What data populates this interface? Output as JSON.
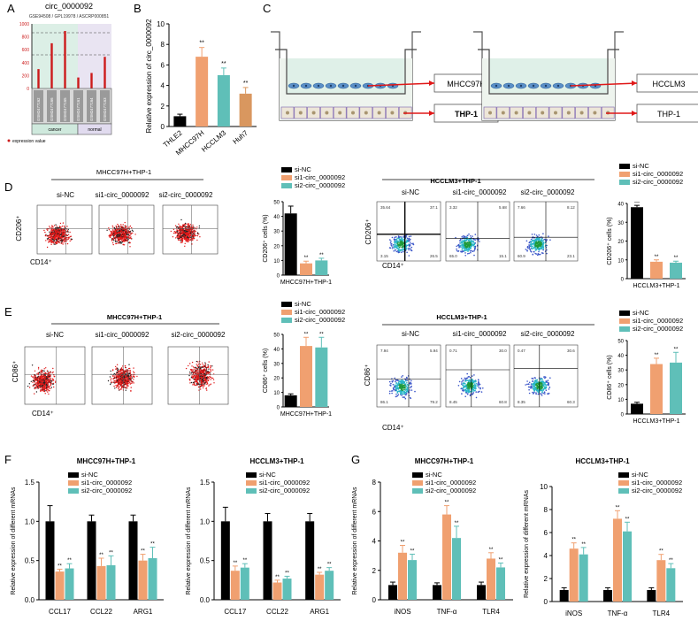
{
  "panel_labels": {
    "a": "A",
    "b": "B",
    "c": "C",
    "d": "D",
    "e": "E",
    "f": "F",
    "g": "G"
  },
  "colors": {
    "black": "#000000",
    "orange": "#f0a070",
    "teal": "#5fbfb8",
    "red": "#cc1b1b",
    "flow_red": "#e01818",
    "green_band": "#dcefe6",
    "purple_band": "#e9e4f2"
  },
  "panel_a": {
    "title": "circ_0000092",
    "subtitle": "GSE94508 / GPL19978 / ASCRP000851",
    "yticks": [
      "1000",
      "800",
      "600",
      "400",
      "200",
      "0"
    ],
    "samples": [
      "GSM2477162",
      "GSM2477166",
      "GSM2477165",
      "GSM2477161",
      "GSM2477164",
      "GSM2477163"
    ],
    "groups": [
      "cancer",
      "normal"
    ],
    "legend": "expression value",
    "chart_data": {
      "type": "bar",
      "categories": [
        "GSM2477162",
        "GSM2477166",
        "GSM2477165",
        "GSM2477161",
        "GSM2477164",
        "GSM2477163"
      ],
      "values": [
        300,
        700,
        890,
        170,
        240,
        490
      ],
      "ylim": [
        0,
        1000
      ],
      "title": "circ_0000092"
    }
  },
  "panel_b": {
    "ylabel": "Relative expression of circ_0000092",
    "yticks": [
      "0",
      "2",
      "4",
      "6",
      "8",
      "10"
    ],
    "categories": [
      "THLE2",
      "MHCC97H",
      "HCCLM3",
      "Huh7"
    ],
    "sig": [
      "",
      "**",
      "**",
      "**"
    ],
    "chart_data": {
      "type": "bar",
      "categories": [
        "THLE2",
        "MHCC97H",
        "HCCLM3",
        "Huh7"
      ],
      "values": [
        1.0,
        6.8,
        5.0,
        3.2
      ],
      "errors": [
        0.2,
        0.9,
        0.7,
        0.6
      ],
      "ylim": [
        0,
        10
      ],
      "ylabel": "Relative expression of circ_0000092"
    }
  },
  "panel_c": {
    "left_upper": "MHCC97H",
    "left_lower": "THP-1",
    "right_upper": "HCCLM3",
    "right_lower": "THP-1"
  },
  "legend3": {
    "nc": "si-NC",
    "si1": "si1-circ_0000092",
    "si2": "si2-circ_0000092"
  },
  "panel_d": {
    "left_title": "MHCC97H+THP-1",
    "right_title": "HCCLM3+THP-1",
    "col_labels": [
      "si-NC",
      "si1-circ_0000092",
      "si2-circ_0000092"
    ],
    "ylabel": "CD206⁺",
    "xlabel": "CD14⁺",
    "right_quads": [
      [
        "35.64",
        "37.1",
        "3.15",
        "26.5"
      ],
      [
        "3.32",
        "5.68",
        "65.0",
        "15.1"
      ],
      [
        "7.66",
        "8.12",
        "60.9",
        "23.1"
      ]
    ],
    "bar1": {
      "ylabel": "CD206⁺ cells (%)",
      "yticks": [
        "0",
        "10",
        "20",
        "30",
        "40",
        "50"
      ],
      "xlabel": "MHCC97H+THP-1",
      "sig": [
        "",
        "**",
        "**"
      ],
      "chart_data": {
        "type": "bar",
        "categories": [
          "si-NC",
          "si1-circ_0000092",
          "si2-circ_0000092"
        ],
        "values": [
          42,
          8,
          10
        ],
        "errors": [
          5,
          1.5,
          1.5
        ],
        "ylim": [
          0,
          50
        ]
      }
    },
    "bar2": {
      "ylabel": "CD206⁺ cells (%)",
      "yticks": [
        "0",
        "10",
        "20",
        "30",
        "40"
      ],
      "xlabel": "HCCLM3+THP-1",
      "sig": [
        "—",
        "**",
        "**"
      ],
      "chart_data": {
        "type": "bar",
        "categories": [
          "si-NC",
          "si1-circ_0000092",
          "si2-circ_0000092"
        ],
        "values": [
          38,
          9,
          8.5
        ],
        "errors": [
          1,
          1,
          0.8
        ],
        "ylim": [
          0,
          40
        ]
      }
    }
  },
  "panel_e": {
    "left_title": "MHCC97H+THP-1",
    "right_title": "HCCLM3+THP-1",
    "col_labels": [
      "si-NC",
      "si1-circ_0000092",
      "si2-circ_0000092"
    ],
    "ylabel": "CD86⁺",
    "xlabel": "CD14⁺",
    "right_quads": [
      [
        "7.94",
        "5.94",
        "86.1",
        "79.2"
      ],
      [
        "0.71",
        "30.0",
        "8.45",
        "60.8"
      ],
      [
        "0.47",
        "30.6",
        "8.35",
        "60.3"
      ]
    ],
    "bar1": {
      "ylabel": "CD86⁺ cells (%)",
      "yticks": [
        "0",
        "10",
        "20",
        "30",
        "40",
        "50"
      ],
      "xlabel": "MHCC97H+THP-1",
      "sig": [
        "",
        "**",
        "**"
      ],
      "chart_data": {
        "type": "bar",
        "categories": [
          "si-NC",
          "si1-circ_0000092",
          "si2-circ_0000092"
        ],
        "values": [
          8,
          42,
          41
        ],
        "errors": [
          1,
          6,
          7
        ],
        "ylim": [
          0,
          50
        ]
      }
    },
    "bar2": {
      "ylabel": "CD86⁺ cells (%)",
      "yticks": [
        "0",
        "10",
        "20",
        "30",
        "40",
        "50"
      ],
      "xlabel": "HCCLM3+THP-1",
      "sig": [
        "",
        "**",
        "**"
      ],
      "chart_data": {
        "type": "bar",
        "categories": [
          "si-NC",
          "si1-circ_0000092",
          "si2-circ_0000092"
        ],
        "values": [
          7,
          34,
          35
        ],
        "errors": [
          1,
          4,
          7
        ],
        "ylim": [
          0,
          50
        ]
      }
    }
  },
  "panel_f": {
    "ylabel": "Relative expression of different mRNAs",
    "charts": [
      {
        "title": "MHCC97H+THP-1",
        "yticks": [
          "0.0",
          "0.5",
          "1.0",
          "1.5"
        ],
        "chart_data": {
          "type": "bar",
          "categories": [
            "CCL17",
            "CCL22",
            "ARG1"
          ],
          "series": [
            {
              "name": "si-NC",
              "values": [
                1.0,
                1.0,
                1.0
              ],
              "errors": [
                0.2,
                0.08,
                0.08
              ]
            },
            {
              "name": "si1-circ_0000092",
              "values": [
                0.36,
                0.43,
                0.5
              ],
              "errors": [
                0.03,
                0.1,
                0.08
              ]
            },
            {
              "name": "si2-circ_0000092",
              "values": [
                0.4,
                0.44,
                0.53
              ],
              "errors": [
                0.06,
                0.12,
                0.14
              ]
            }
          ],
          "ylim": [
            0,
            1.5
          ]
        }
      },
      {
        "title": "HCCLM3+THP-1",
        "yticks": [
          "0.0",
          "0.5",
          "1.0",
          "1.5"
        ],
        "chart_data": {
          "type": "bar",
          "categories": [
            "CCL17",
            "CCL22",
            "ARG1"
          ],
          "series": [
            {
              "name": "si-NC",
              "values": [
                1.0,
                1.0,
                1.0
              ],
              "errors": [
                0.18,
                0.1,
                0.1
              ]
            },
            {
              "name": "si1-circ_0000092",
              "values": [
                0.37,
                0.22,
                0.32
              ],
              "errors": [
                0.06,
                0.03,
                0.03
              ]
            },
            {
              "name": "si2-circ_0000092",
              "values": [
                0.41,
                0.27,
                0.37
              ],
              "errors": [
                0.05,
                0.03,
                0.04
              ]
            }
          ],
          "ylim": [
            0,
            1.5
          ]
        }
      }
    ]
  },
  "panel_g": {
    "ylabel": "Relative expression of different mRNAs",
    "charts": [
      {
        "title": "MHCC97H+THP-1",
        "yticks": [
          "0",
          "2",
          "4",
          "6",
          "8"
        ],
        "chart_data": {
          "type": "bar",
          "categories": [
            "iNOS",
            "TNF-α",
            "TLR4"
          ],
          "series": [
            {
              "name": "si-NC",
              "values": [
                1.0,
                1.0,
                1.0
              ],
              "errors": [
                0.2,
                0.15,
                0.2
              ]
            },
            {
              "name": "si1-circ_0000092",
              "values": [
                3.2,
                5.8,
                2.8
              ],
              "errors": [
                0.5,
                0.6,
                0.4
              ]
            },
            {
              "name": "si2-circ_0000092",
              "values": [
                2.7,
                4.2,
                2.2
              ],
              "errors": [
                0.4,
                0.8,
                0.3
              ]
            }
          ],
          "ylim": [
            0,
            8
          ]
        }
      },
      {
        "title": "HCCLM3+THP-1",
        "yticks": [
          "0",
          "2",
          "4",
          "6",
          "8",
          "10"
        ],
        "chart_data": {
          "type": "bar",
          "categories": [
            "iNOS",
            "TNF-α",
            "TLR4"
          ],
          "series": [
            {
              "name": "si-NC",
              "values": [
                1.0,
                1.0,
                1.0
              ],
              "errors": [
                0.2,
                0.2,
                0.2
              ]
            },
            {
              "name": "si1-circ_0000092",
              "values": [
                4.6,
                7.2,
                3.6
              ],
              "errors": [
                0.5,
                0.7,
                0.5
              ]
            },
            {
              "name": "si2-circ_0000092",
              "values": [
                4.1,
                6.1,
                2.9
              ],
              "errors": [
                0.6,
                0.8,
                0.4
              ]
            }
          ],
          "ylim": [
            0,
            10
          ]
        }
      }
    ]
  }
}
